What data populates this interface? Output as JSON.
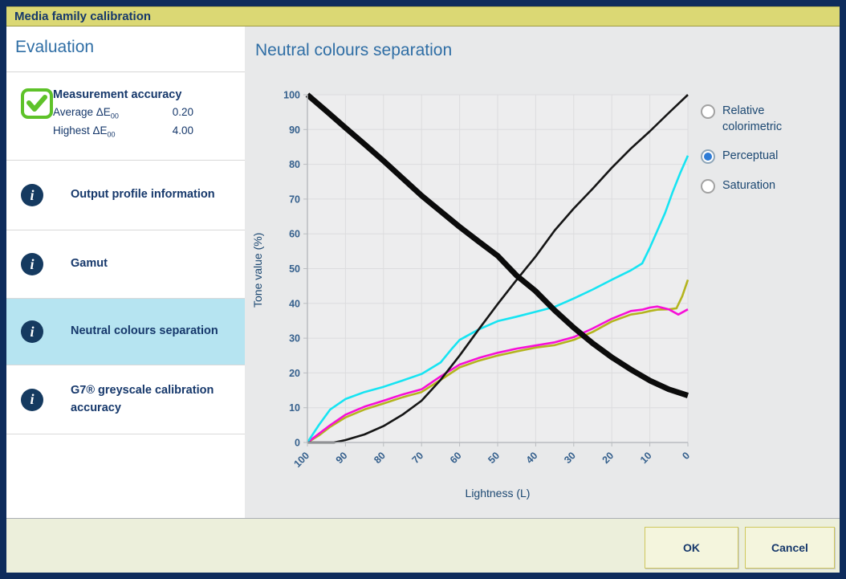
{
  "window": {
    "title": "Media family calibration"
  },
  "sidebar": {
    "heading": "Evaluation",
    "measurement": {
      "title": "Measurement accuracy",
      "status_icon": "green-check",
      "rows": [
        {
          "label": "Average ΔE",
          "sub": "00",
          "value": "0.20"
        },
        {
          "label": "Highest ΔE",
          "sub": "00",
          "value": "4.00"
        }
      ]
    },
    "items": [
      {
        "label": "Output profile information",
        "selected": false
      },
      {
        "label": "Gamut",
        "selected": false
      },
      {
        "label": "Neutral colours separation",
        "selected": true
      },
      {
        "label": "G7® greyscale calibration accuracy",
        "selected": false
      }
    ]
  },
  "main": {
    "title": "Neutral colours separation",
    "radios": [
      {
        "label": "Relative colorimetric",
        "selected": false
      },
      {
        "label": "Perceptual",
        "selected": true
      },
      {
        "label": "Saturation",
        "selected": false
      }
    ]
  },
  "footer": {
    "ok_label": "OK",
    "cancel_label": "Cancel"
  },
  "colors": {
    "window_border": "#0e2c5c",
    "titlebar_bg": "#dbd874",
    "navy_text": "#16386b",
    "heading_blue": "#2f6ea5",
    "selected_item_bg": "#b6e4f1",
    "check_green": "#5ec229",
    "footer_bg": "#ecefdb",
    "radio_selected_dot": "#2e7cd6"
  },
  "chart_data": {
    "type": "line",
    "title": "Neutral colours separation",
    "xlabel": "Lightness (L)",
    "ylabel": "Tone value (%)",
    "xlim": [
      100,
      0
    ],
    "ylim": [
      0,
      100
    ],
    "x_reversed": true,
    "grid": true,
    "legend": "none",
    "x_ticks": [
      100,
      90,
      80,
      70,
      60,
      50,
      40,
      30,
      20,
      10,
      0
    ],
    "y_ticks": [
      0,
      10,
      20,
      30,
      40,
      50,
      60,
      70,
      80,
      90,
      100
    ],
    "plot_bg": "#ededee",
    "grid_color": "#dcdcde",
    "axis_color": "#b9bcc0",
    "series": [
      {
        "name": "yellow-channel",
        "color": "#b4b41e",
        "width": 2.6,
        "points": [
          [
            100,
            0
          ],
          [
            97,
            2
          ],
          [
            94,
            4.5
          ],
          [
            90,
            7.2
          ],
          [
            85,
            9.5
          ],
          [
            80,
            11.2
          ],
          [
            75,
            13
          ],
          [
            70,
            14.5
          ],
          [
            65,
            18
          ],
          [
            60,
            21.6
          ],
          [
            55,
            23.5
          ],
          [
            50,
            25
          ],
          [
            45,
            26.2
          ],
          [
            40,
            27.3
          ],
          [
            35,
            28
          ],
          [
            30,
            29.5
          ],
          [
            25,
            31.8
          ],
          [
            20,
            34.8
          ],
          [
            15,
            36.8
          ],
          [
            12,
            37.3
          ],
          [
            10,
            37.8
          ],
          [
            8,
            38.2
          ],
          [
            5,
            38.3
          ],
          [
            3,
            38.6
          ],
          [
            1.5,
            42
          ],
          [
            0,
            46.8
          ]
        ]
      },
      {
        "name": "magenta-channel",
        "color": "#f70fd7",
        "width": 2.6,
        "points": [
          [
            100,
            0
          ],
          [
            97,
            2.5
          ],
          [
            94,
            5
          ],
          [
            90,
            8
          ],
          [
            85,
            10.3
          ],
          [
            80,
            12
          ],
          [
            75,
            13.8
          ],
          [
            70,
            15.3
          ],
          [
            65,
            19
          ],
          [
            60,
            22.4
          ],
          [
            55,
            24.3
          ],
          [
            50,
            25.8
          ],
          [
            45,
            27
          ],
          [
            40,
            27.9
          ],
          [
            35,
            28.8
          ],
          [
            30,
            30.3
          ],
          [
            25,
            32.8
          ],
          [
            20,
            35.6
          ],
          [
            15,
            37.8
          ],
          [
            12,
            38.2
          ],
          [
            10,
            38.8
          ],
          [
            8,
            39.1
          ],
          [
            5,
            38.3
          ],
          [
            2.5,
            36.8
          ],
          [
            0,
            38.3
          ]
        ]
      },
      {
        "name": "cyan-channel",
        "color": "#16e4f2",
        "width": 2.6,
        "points": [
          [
            100,
            0
          ],
          [
            97,
            5
          ],
          [
            94,
            9.5
          ],
          [
            90,
            12.5
          ],
          [
            85,
            14.5
          ],
          [
            80,
            16
          ],
          [
            75,
            17.8
          ],
          [
            70,
            19.7
          ],
          [
            65,
            23
          ],
          [
            62,
            27
          ],
          [
            60,
            29.5
          ],
          [
            55,
            32.5
          ],
          [
            50,
            34.9
          ],
          [
            45,
            36.2
          ],
          [
            40,
            37.6
          ],
          [
            35,
            39
          ],
          [
            30,
            41.4
          ],
          [
            25,
            44
          ],
          [
            20,
            46.8
          ],
          [
            15,
            49.5
          ],
          [
            12,
            51.5
          ],
          [
            10,
            56
          ],
          [
            8,
            61
          ],
          [
            6,
            66
          ],
          [
            4,
            72
          ],
          [
            2,
            77.5
          ],
          [
            0,
            82.5
          ]
        ]
      },
      {
        "name": "black-channel-thin",
        "color": "#151515",
        "width": 2.6,
        "points": [
          [
            100,
            0
          ],
          [
            93,
            0
          ],
          [
            90,
            0.7
          ],
          [
            85,
            2.3
          ],
          [
            80,
            4.7
          ],
          [
            75,
            8
          ],
          [
            70,
            12
          ],
          [
            65,
            18
          ],
          [
            60,
            25
          ],
          [
            55,
            32.5
          ],
          [
            50,
            39.8
          ],
          [
            45,
            46.8
          ],
          [
            40,
            53.5
          ],
          [
            35,
            61
          ],
          [
            30,
            67.3
          ],
          [
            25,
            73
          ],
          [
            20,
            79
          ],
          [
            15,
            84.5
          ],
          [
            10,
            89.5
          ],
          [
            5,
            94.8
          ],
          [
            0,
            100
          ]
        ]
      },
      {
        "name": "lightness-thick-black",
        "color": "#0b0b0b",
        "width": 7,
        "points": [
          [
            100,
            100
          ],
          [
            95,
            95.3
          ],
          [
            90,
            90.5
          ],
          [
            85,
            85.8
          ],
          [
            80,
            81
          ],
          [
            75,
            76
          ],
          [
            70,
            71
          ],
          [
            65,
            66.5
          ],
          [
            60,
            62
          ],
          [
            55,
            57.8
          ],
          [
            50,
            53.7
          ],
          [
            45,
            48
          ],
          [
            40,
            43.5
          ],
          [
            35,
            38
          ],
          [
            30,
            33
          ],
          [
            25,
            28.5
          ],
          [
            20,
            24.5
          ],
          [
            15,
            21
          ],
          [
            10,
            17.8
          ],
          [
            5,
            15.3
          ],
          [
            0,
            13.5
          ]
        ]
      }
    ]
  }
}
